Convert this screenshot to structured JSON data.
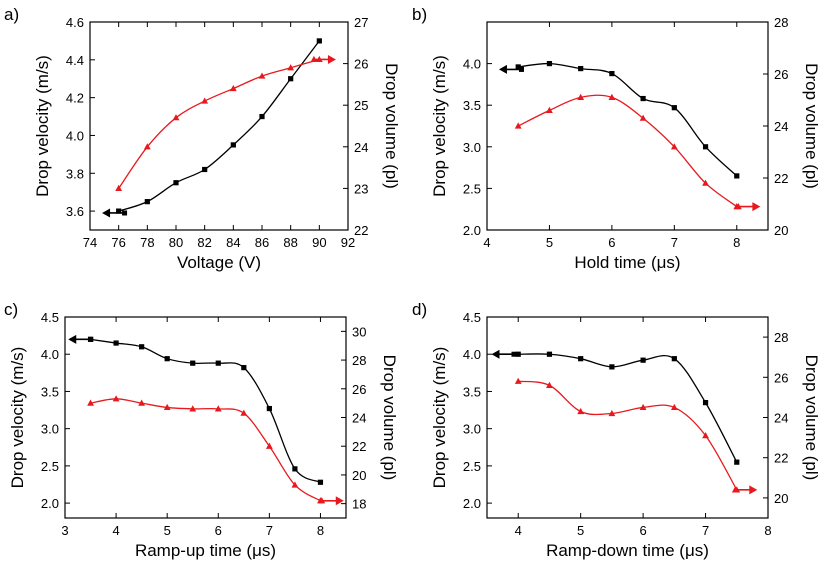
{
  "chart_data": [
    {
      "type": "line",
      "panel_label": "a)",
      "xlabel": "Voltage (V)",
      "ylabel": "Drop velocity (m/s)",
      "y2label": "Drop volume (pl)",
      "xlim": [
        74,
        92
      ],
      "ylim": [
        3.5,
        4.6
      ],
      "y2lim": [
        22,
        27
      ],
      "xticks": [
        "74",
        "76",
        "78",
        "80",
        "82",
        "84",
        "86",
        "88",
        "90",
        "92"
      ],
      "yticks": [
        "3.6",
        "3.8",
        "4.0",
        "4.2",
        "4.4",
        "4.6"
      ],
      "y2ticks": [
        "22",
        "23",
        "24",
        "25",
        "26",
        "27"
      ],
      "series": [
        {
          "name": "Drop velocity",
          "axis": "left",
          "color": "#000000",
          "marker": "square",
          "x": [
            76,
            78,
            80,
            82,
            84,
            86,
            88,
            90
          ],
          "values": [
            3.6,
            3.65,
            3.75,
            3.82,
            3.95,
            4.1,
            4.3,
            4.5
          ]
        },
        {
          "name": "Drop volume",
          "axis": "right",
          "color": "#e8191e",
          "marker": "triangle",
          "x": [
            76,
            78,
            80,
            82,
            84,
            86,
            88,
            90
          ],
          "values": [
            23.0,
            24.0,
            24.7,
            25.1,
            25.4,
            25.7,
            25.9,
            26.1
          ]
        }
      ],
      "arrows": [
        {
          "series": "Drop velocity",
          "direction": "left",
          "x": 75.4,
          "y": 3.59
        },
        {
          "series": "Drop volume",
          "direction": "right",
          "x": 90.6,
          "y": 26.1
        }
      ]
    },
    {
      "type": "line",
      "panel_label": "b)",
      "xlabel": "Hold time (μs)",
      "ylabel": "Drop velocity (m/s)",
      "y2label": "Drop volume (pl)",
      "xlim": [
        4,
        8.5
      ],
      "ylim": [
        2.0,
        4.5
      ],
      "y2lim": [
        20,
        28
      ],
      "xticks": [
        "4",
        "5",
        "6",
        "7",
        "8"
      ],
      "yticks": [
        "2.0",
        "2.5",
        "3.0",
        "3.5",
        "4.0"
      ],
      "y2ticks": [
        "20",
        "22",
        "24",
        "26",
        "28"
      ],
      "series": [
        {
          "name": "Drop velocity",
          "axis": "left",
          "color": "#000000",
          "marker": "square",
          "x": [
            4.5,
            5,
            5.5,
            6,
            6.5,
            7,
            7.5,
            8
          ],
          "values": [
            3.96,
            4.0,
            3.94,
            3.88,
            3.58,
            3.47,
            3.0,
            2.65
          ]
        },
        {
          "name": "Drop volume",
          "axis": "right",
          "color": "#e8191e",
          "marker": "triangle",
          "x": [
            4.5,
            5,
            5.5,
            6,
            6.5,
            7,
            7.5,
            8
          ],
          "values": [
            24.0,
            24.6,
            25.1,
            25.1,
            24.3,
            23.2,
            21.8,
            20.9
          ]
        }
      ],
      "arrows": [
        {
          "series": "Drop velocity",
          "direction": "left",
          "x": 4.32,
          "y": 3.93
        },
        {
          "series": "Drop volume",
          "direction": "right",
          "x": 8.25,
          "y": 20.9
        }
      ]
    },
    {
      "type": "line",
      "panel_label": "c)",
      "xlabel": "Ramp-up time (μs)",
      "ylabel": "Drop velocity (m/s)",
      "y2label": "Drop volume (pl)",
      "xlim": [
        3,
        8.5
      ],
      "ylim": [
        1.8,
        4.5
      ],
      "y2lim": [
        17,
        31
      ],
      "xticks": [
        "3",
        "4",
        "5",
        "6",
        "7",
        "8"
      ],
      "yticks": [
        "2.0",
        "2.5",
        "3.0",
        "3.5",
        "4.0",
        "4.5"
      ],
      "y2ticks": [
        "18",
        "20",
        "22",
        "24",
        "26",
        "28",
        "30"
      ],
      "series": [
        {
          "name": "Drop velocity",
          "axis": "left",
          "color": "#000000",
          "marker": "square",
          "x": [
            3.5,
            4,
            4.5,
            5,
            5.5,
            6,
            6.5,
            7,
            7.5,
            8
          ],
          "values": [
            4.2,
            4.15,
            4.1,
            3.94,
            3.88,
            3.88,
            3.82,
            3.27,
            2.46,
            2.28
          ]
        },
        {
          "name": "Drop volume",
          "axis": "right",
          "color": "#e8191e",
          "marker": "triangle",
          "x": [
            3.5,
            4,
            4.5,
            5,
            5.5,
            6,
            6.5,
            7,
            7.5,
            8
          ],
          "values": [
            25.0,
            25.3,
            25.0,
            24.7,
            24.6,
            24.6,
            24.3,
            22.0,
            19.3,
            18.2
          ]
        }
      ],
      "arrows": [
        {
          "series": "Drop velocity",
          "direction": "left",
          "x": 3.22,
          "y": 4.2
        },
        {
          "series": "Drop volume",
          "direction": "right",
          "x": 8.3,
          "y": 18.2
        }
      ]
    },
    {
      "type": "line",
      "panel_label": "d)",
      "xlabel": "Ramp-down time (μs)",
      "ylabel": "Drop velocity (m/s)",
      "y2label": "Drop volume (pl)",
      "xlim": [
        3.5,
        8
      ],
      "ylim": [
        1.8,
        4.5
      ],
      "y2lim": [
        19,
        29
      ],
      "xticks": [
        "4",
        "5",
        "6",
        "7",
        "8"
      ],
      "yticks": [
        "2.0",
        "2.5",
        "3.0",
        "3.5",
        "4.0",
        "4.5"
      ],
      "y2ticks": [
        "20",
        "22",
        "24",
        "26",
        "28"
      ],
      "series": [
        {
          "name": "Drop velocity",
          "axis": "left",
          "color": "#000000",
          "marker": "square",
          "x": [
            4,
            4.5,
            5,
            5.5,
            6,
            6.5,
            7,
            7.5
          ],
          "values": [
            4.0,
            4.0,
            3.94,
            3.83,
            3.92,
            3.94,
            3.35,
            2.55
          ]
        },
        {
          "name": "Drop volume",
          "axis": "right",
          "color": "#e8191e",
          "marker": "triangle",
          "x": [
            4,
            4.5,
            5,
            5.5,
            6,
            6.5,
            7,
            7.5
          ],
          "values": [
            25.8,
            25.6,
            24.3,
            24.2,
            24.5,
            24.5,
            23.1,
            20.4
          ]
        }
      ],
      "arrows": [
        {
          "series": "Drop velocity",
          "direction": "left",
          "x": 3.7,
          "y": 4.0
        },
        {
          "series": "Drop volume",
          "direction": "right",
          "x": 7.7,
          "y": 20.4
        }
      ]
    }
  ]
}
